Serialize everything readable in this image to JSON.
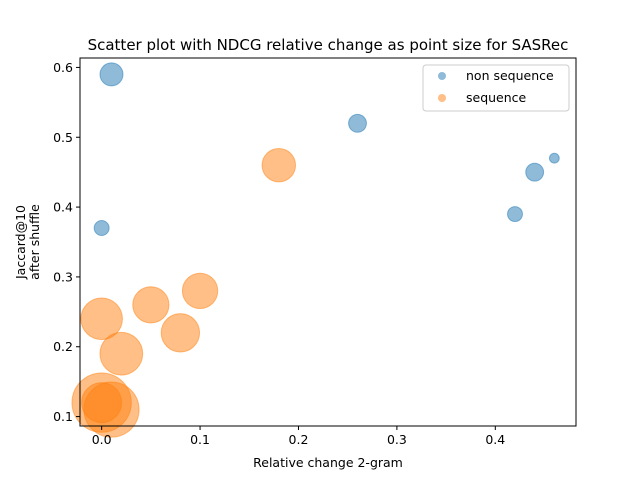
{
  "chart_data": {
    "type": "scatter",
    "title": "Scatter plot with NDCG relative change as point size for SASRec",
    "xlabel": "Relative change 2-gram",
    "ylabel": [
      "Jaccard@10",
      "after shuffle"
    ],
    "xlim": [
      -0.022,
      0.482
    ],
    "ylim": [
      0.0865,
      0.6135
    ],
    "xticks": [
      0.0,
      0.1,
      0.2,
      0.3,
      0.4
    ],
    "xtick_labels": [
      "0.0",
      "0.1",
      "0.2",
      "0.3",
      "0.4"
    ],
    "yticks": [
      0.1,
      0.2,
      0.3,
      0.4,
      0.5,
      0.6
    ],
    "ytick_labels": [
      "0.1",
      "0.2",
      "0.3",
      "0.4",
      "0.5",
      "0.6"
    ],
    "legend_position": "top-right",
    "size_encoding": "NDCG relative change (marker area)",
    "series": [
      {
        "name": "non sequence",
        "color": "#1f77b4",
        "points": [
          {
            "x": 0.01,
            "y": 0.59,
            "s": 0.33
          },
          {
            "x": 0.26,
            "y": 0.52,
            "s": 0.2
          },
          {
            "x": 0.46,
            "y": 0.47,
            "s": 0.06
          },
          {
            "x": 0.44,
            "y": 0.45,
            "s": 0.2
          },
          {
            "x": 0.42,
            "y": 0.39,
            "s": 0.14
          },
          {
            "x": 0.0,
            "y": 0.37,
            "s": 0.14
          }
        ]
      },
      {
        "name": "sequence",
        "color": "#ff7f0e",
        "points": [
          {
            "x": 0.18,
            "y": 0.46,
            "s": 0.7
          },
          {
            "x": 0.1,
            "y": 0.28,
            "s": 0.78
          },
          {
            "x": 0.05,
            "y": 0.26,
            "s": 0.82
          },
          {
            "x": 0.0,
            "y": 0.24,
            "s": 1.08
          },
          {
            "x": 0.08,
            "y": 0.22,
            "s": 0.92
          },
          {
            "x": 0.02,
            "y": 0.19,
            "s": 1.14
          },
          {
            "x": 0.0,
            "y": 0.12,
            "s": 2.2
          },
          {
            "x": 0.01,
            "y": 0.11,
            "s": 1.9
          },
          {
            "x": 0.0,
            "y": 0.12,
            "s": 1.0
          }
        ]
      }
    ]
  }
}
